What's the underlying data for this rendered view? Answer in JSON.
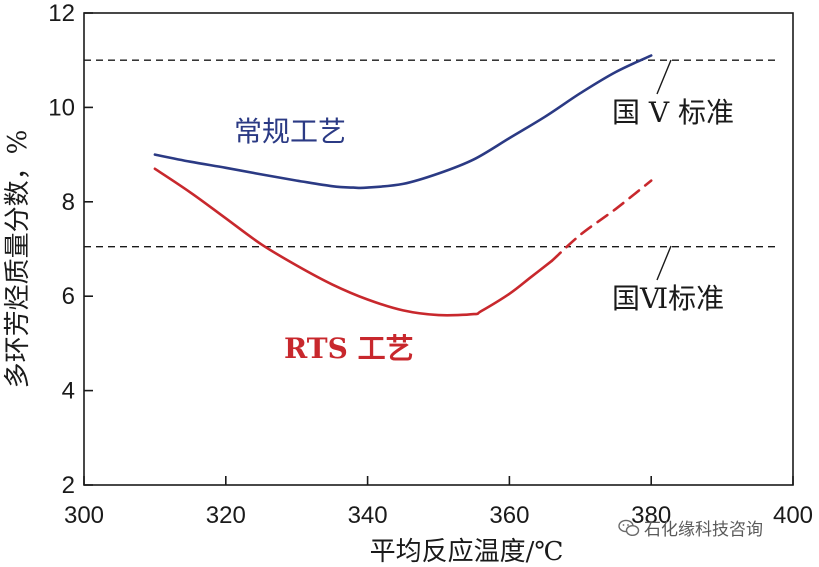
{
  "chart_data": {
    "type": "line",
    "xlabel": "平均反应温度/℃",
    "ylabel": "多环芳烃质量分数，%",
    "xlim": [
      300,
      400
    ],
    "ylim": [
      2,
      12
    ],
    "xticks": [
      "300",
      "320",
      "340",
      "360",
      "380",
      "400"
    ],
    "yticks": [
      "2",
      "4",
      "6",
      "8",
      "10",
      "12"
    ],
    "grid": false,
    "series": [
      {
        "name": "常规工艺",
        "color": "#2b3a84",
        "style": "solid",
        "x": [
          310,
          315,
          320,
          325,
          330,
          335,
          338,
          340,
          345,
          350,
          355,
          360,
          365,
          370,
          375,
          380
        ],
        "y": [
          9.0,
          8.85,
          8.72,
          8.58,
          8.45,
          8.33,
          8.3,
          8.3,
          8.38,
          8.6,
          8.9,
          9.35,
          9.8,
          10.3,
          10.75,
          11.1
        ]
      },
      {
        "name": "RTS 工艺",
        "color": "#c8282d",
        "style": "solid",
        "x": [
          310,
          315,
          320,
          325,
          330,
          335,
          340,
          345,
          350,
          355,
          356,
          360,
          363,
          366
        ],
        "y": [
          8.7,
          8.2,
          7.65,
          7.1,
          6.65,
          6.25,
          5.93,
          5.7,
          5.6,
          5.62,
          5.68,
          6.05,
          6.4,
          6.75
        ]
      },
      {
        "name": "RTS 工艺",
        "color": "#c8282d",
        "style": "dashed",
        "x": [
          366,
          370,
          375,
          380
        ],
        "y": [
          6.75,
          7.3,
          7.85,
          8.45
        ]
      }
    ],
    "reference_lines": [
      {
        "label": "国 V 标准",
        "y": 11.0
      },
      {
        "label": "国Ⅵ标准",
        "y": 7.05
      }
    ],
    "annotations": {
      "conventional": "常规工艺",
      "rts": "RTS 工艺"
    }
  },
  "watermark": {
    "icon": "wechat-icon",
    "text": "石化缘科技咨询"
  }
}
